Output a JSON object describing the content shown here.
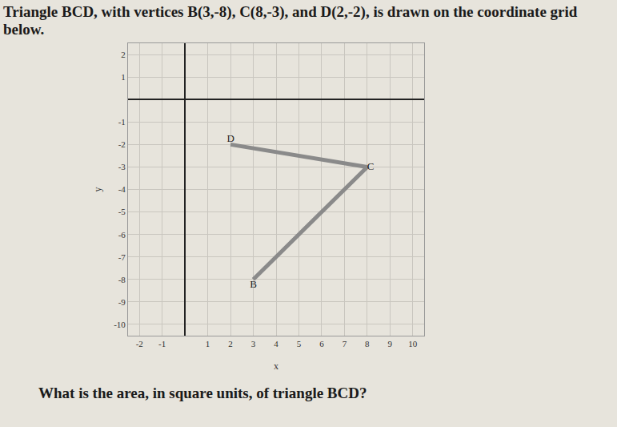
{
  "header": "Triangle BCD, with vertices B(3,-8), C(8,-3), and D(2,-2), is drawn on the coordinate grid below.",
  "question": "What is the area, in square units, of triangle BCD?",
  "chart_data": {
    "type": "scatter",
    "labels": [
      "B",
      "C",
      "D"
    ],
    "x": [
      3,
      8,
      2
    ],
    "y": [
      -8,
      -3,
      -2
    ],
    "x_label": "x",
    "y_label": "y",
    "xlim": [
      -2.5,
      10.5
    ],
    "xticks": [
      -2,
      -1,
      1,
      2,
      3,
      4,
      5,
      6,
      7,
      8,
      9,
      10
    ],
    "ylim": [
      -10.5,
      2.5
    ],
    "yticks": [
      2,
      1,
      -1,
      -2,
      -3,
      -4,
      -5,
      -6,
      -7,
      -8,
      -9,
      -10
    ],
    "color": "#8a8a8a",
    "grid": true
  }
}
